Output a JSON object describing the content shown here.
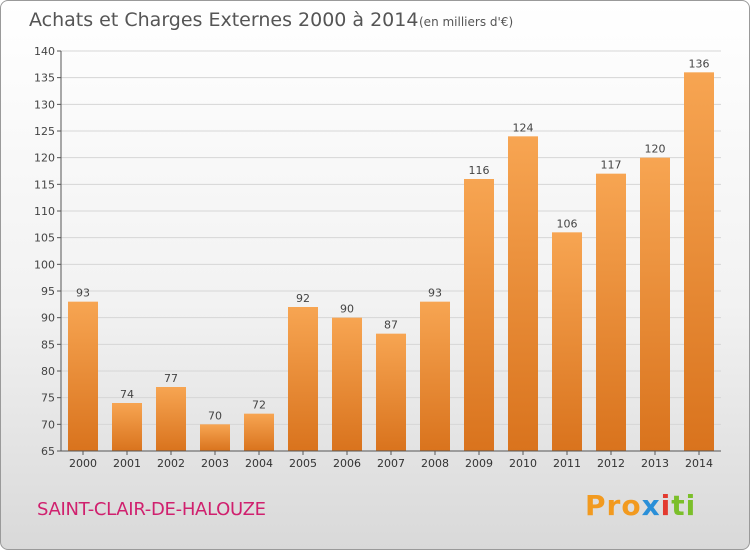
{
  "title": "Achats et Charges Externes 2000 à 2014",
  "unit_label": "(en milliers d'€)",
  "city": "SAINT-CLAIR-DE-HALOUZE",
  "logo": {
    "part1": "Pro",
    "part2": "x",
    "part3": "i",
    "part4": "ti"
  },
  "chart_data": {
    "type": "bar",
    "title": "Achats et Charges Externes 2000 à 2014",
    "subtitle": "(en milliers d'€)",
    "xlabel": "",
    "ylabel": "",
    "categories": [
      "2000",
      "2001",
      "2002",
      "2003",
      "2004",
      "2005",
      "2006",
      "2007",
      "2008",
      "2009",
      "2010",
      "2011",
      "2012",
      "2013",
      "2014"
    ],
    "values": [
      93,
      74,
      77,
      70,
      72,
      92,
      90,
      87,
      93,
      116,
      124,
      106,
      117,
      120,
      136
    ],
    "ylim": [
      65,
      140
    ],
    "yticks": [
      65,
      70,
      75,
      80,
      85,
      90,
      95,
      100,
      105,
      110,
      115,
      120,
      125,
      130,
      135,
      140
    ],
    "grid": true,
    "bar_color": "#f0963a",
    "bar_color_dark": "#d9741e"
  }
}
